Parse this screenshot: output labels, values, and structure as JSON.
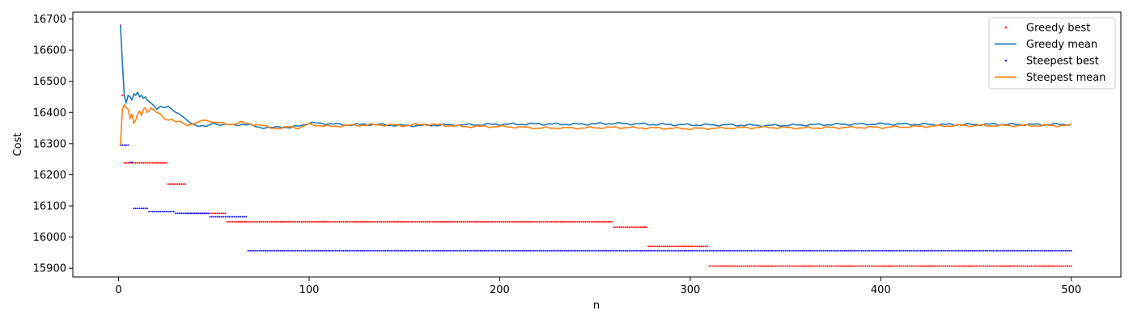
{
  "chart_data": {
    "type": "line",
    "title": "",
    "xlabel": "n",
    "ylabel": "Cost",
    "xlim": [
      -24,
      526
    ],
    "ylim": [
      15872,
      16722
    ],
    "xticks": [
      0,
      100,
      200,
      300,
      400,
      500
    ],
    "yticks": [
      15900,
      16000,
      16100,
      16200,
      16300,
      16400,
      16500,
      16600,
      16700
    ],
    "grid": false,
    "legend": "top-right",
    "series": [
      {
        "name": "Greedy best",
        "style": "dots",
        "color": "#ff0000",
        "steps": [
          {
            "from": 1,
            "to": 1,
            "value": 16680
          },
          {
            "from": 2,
            "to": 2,
            "value": 16455
          },
          {
            "from": 3,
            "to": 25,
            "value": 16238
          },
          {
            "from": 26,
            "to": 35,
            "value": 16170
          },
          {
            "from": 36,
            "to": 56,
            "value": 16076
          },
          {
            "from": 57,
            "to": 259,
            "value": 16049
          },
          {
            "from": 260,
            "to": 277,
            "value": 16032
          },
          {
            "from": 278,
            "to": 309,
            "value": 15970
          },
          {
            "from": 310,
            "to": 500,
            "value": 15907
          }
        ]
      },
      {
        "name": "Greedy mean",
        "style": "line",
        "color": "#1f77b4",
        "x": [
          1,
          2,
          3,
          4,
          5,
          6,
          7,
          8,
          9,
          10,
          11,
          12,
          13,
          14,
          15,
          16,
          18,
          20,
          22,
          24,
          26,
          28,
          30,
          32,
          34,
          36,
          38,
          40,
          42,
          44,
          46,
          48,
          50,
          55,
          60,
          65,
          70,
          75,
          80,
          85,
          90,
          95,
          100,
          110,
          120,
          130,
          140,
          150,
          160,
          170,
          180,
          200,
          220,
          240,
          260,
          280,
          300,
          320,
          340,
          360,
          380,
          400,
          420,
          440,
          460,
          480,
          500
        ],
        "values": [
          16680,
          16560,
          16455,
          16430,
          16455,
          16450,
          16440,
          16460,
          16455,
          16465,
          16450,
          16455,
          16445,
          16450,
          16440,
          16435,
          16425,
          16410,
          16420,
          16415,
          16420,
          16410,
          16400,
          16395,
          16385,
          16375,
          16365,
          16360,
          16355,
          16358,
          16355,
          16362,
          16365,
          16360,
          16360,
          16362,
          16358,
          16352,
          16350,
          16355,
          16350,
          16358,
          16366,
          16364,
          16360,
          16362,
          16360,
          16358,
          16358,
          16360,
          16360,
          16362,
          16363,
          16362,
          16365,
          16362,
          16360,
          16360,
          16358,
          16360,
          16362,
          16363,
          16362,
          16361,
          16362,
          16361,
          16362
        ]
      },
      {
        "name": "Steepest best",
        "style": "dots",
        "color": "#0000ff",
        "steps": [
          {
            "from": 1,
            "to": 5,
            "value": 16295
          },
          {
            "from": 6,
            "to": 7,
            "value": 16240
          },
          {
            "from": 8,
            "to": 15,
            "value": 16092
          },
          {
            "from": 16,
            "to": 29,
            "value": 16082
          },
          {
            "from": 30,
            "to": 47,
            "value": 16076
          },
          {
            "from": 48,
            "to": 67,
            "value": 16065
          },
          {
            "from": 68,
            "to": 500,
            "value": 15956
          }
        ]
      },
      {
        "name": "Steepest mean",
        "style": "line",
        "color": "#ff7f0e",
        "x": [
          1,
          2,
          3,
          4,
          5,
          6,
          7,
          8,
          9,
          10,
          11,
          12,
          13,
          14,
          15,
          16,
          17,
          18,
          20,
          22,
          24,
          26,
          28,
          30,
          32,
          34,
          36,
          38,
          40,
          42,
          44,
          46,
          48,
          50,
          55,
          60,
          65,
          70,
          75,
          80,
          85,
          90,
          95,
          100,
          110,
          120,
          130,
          140,
          150,
          160,
          170,
          180,
          200,
          220,
          240,
          260,
          280,
          300,
          320,
          340,
          360,
          380,
          400,
          420,
          440,
          460,
          480,
          500
        ],
        "values": [
          16295,
          16410,
          16425,
          16415,
          16410,
          16380,
          16395,
          16365,
          16375,
          16395,
          16405,
          16390,
          16410,
          16415,
          16400,
          16405,
          16415,
          16410,
          16400,
          16395,
          16380,
          16375,
          16378,
          16370,
          16372,
          16365,
          16358,
          16362,
          16365,
          16370,
          16375,
          16375,
          16370,
          16368,
          16365,
          16362,
          16368,
          16362,
          16358,
          16352,
          16348,
          16355,
          16350,
          16362,
          16355,
          16358,
          16360,
          16360,
          16358,
          16362,
          16360,
          16355,
          16355,
          16350,
          16350,
          16352,
          16350,
          16348,
          16350,
          16352,
          16350,
          16352,
          16352,
          16355,
          16358,
          16358,
          16358,
          16358
        ]
      }
    ]
  }
}
